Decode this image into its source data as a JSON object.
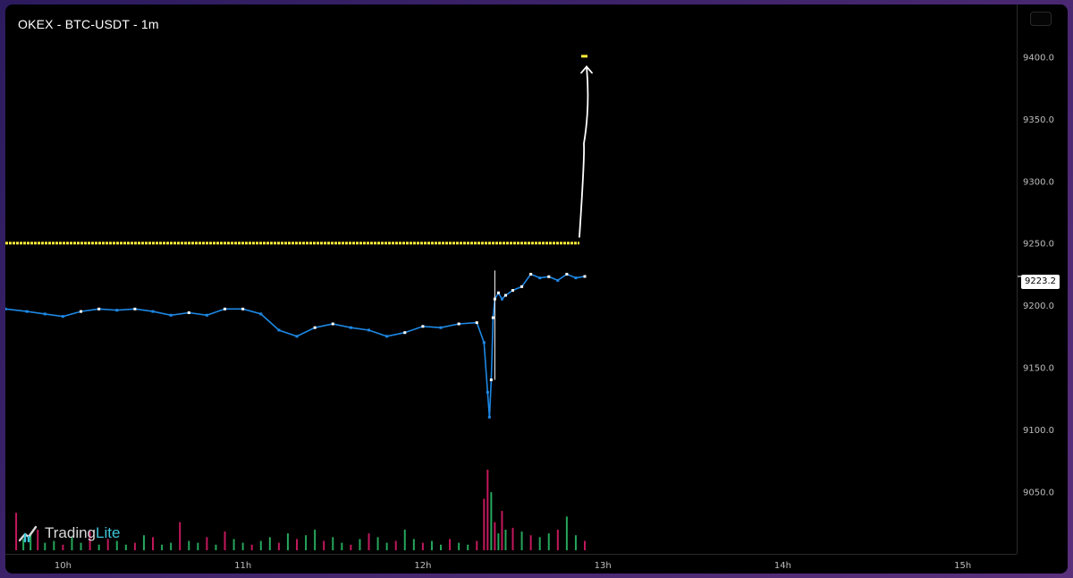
{
  "header": {
    "title": "OKEX - BTC-USDT - 1m"
  },
  "brand": {
    "name_main": "Trading",
    "name_accent": "Lite"
  },
  "current_price_label": "9223.2",
  "colors": {
    "background": "#000000",
    "price_line": "#1e88e5",
    "level_line": "#ffeb3b",
    "volume_up": "#26a65b",
    "volume_down": "#c2185b",
    "annotation_arrow": "#ffffff",
    "brand_accent": "#3fc6d9"
  },
  "chart_data": {
    "type": "line",
    "title": "OKEX - BTC-USDT - 1m",
    "x_unit": "hour",
    "x_range": [
      9.68,
      15.3
    ],
    "xticks": [
      {
        "value": 10,
        "label": "10h"
      },
      {
        "value": 11,
        "label": "11h"
      },
      {
        "value": 12,
        "label": "12h"
      },
      {
        "value": 13,
        "label": "13h"
      },
      {
        "value": 14,
        "label": "14h"
      },
      {
        "value": 15,
        "label": "15h"
      }
    ],
    "ylim": [
      9000,
      9442
    ],
    "yticks": [
      9050,
      9100,
      9150,
      9200,
      9250,
      9300,
      9350,
      9400
    ],
    "ytick_labels": [
      "9050.0",
      "9100.0",
      "9150.0",
      "9200.0",
      "9250.0",
      "9300.0",
      "9350.0",
      "9400.0"
    ],
    "grid": false,
    "series": [
      {
        "x": [
          9.68,
          9.8,
          9.9,
          10.0,
          10.1,
          10.2,
          10.3,
          10.4,
          10.5,
          10.6,
          10.7,
          10.8,
          10.9,
          11.0,
          11.1,
          11.2,
          11.3,
          11.4,
          11.5,
          11.6,
          11.7,
          11.8,
          11.9,
          12.0,
          12.1,
          12.2,
          12.3,
          12.34,
          12.36,
          12.37,
          12.38,
          12.39,
          12.4,
          12.42,
          12.44,
          12.46,
          12.5,
          12.55,
          12.6,
          12.65,
          12.7,
          12.75,
          12.8,
          12.85,
          12.9
        ],
        "y": [
          9197,
          9195,
          9193,
          9191,
          9195,
          9197,
          9196,
          9197,
          9195,
          9192,
          9194,
          9192,
          9197,
          9197,
          9193,
          9180,
          9175,
          9182,
          9185,
          9182,
          9180,
          9175,
          9178,
          9183,
          9182,
          9185,
          9186,
          9170,
          9130,
          9110,
          9140,
          9190,
          9205,
          9210,
          9205,
          9208,
          9212,
          9215,
          9225,
          9222,
          9223,
          9220,
          9225,
          9222,
          9223.2
        ]
      }
    ],
    "horizontal_levels": [
      9250
    ],
    "target_level": 9400,
    "volume": {
      "x": [
        9.74,
        9.78,
        9.82,
        9.86,
        9.9,
        9.95,
        10.0,
        10.05,
        10.1,
        10.15,
        10.2,
        10.25,
        10.3,
        10.35,
        10.4,
        10.45,
        10.5,
        10.55,
        10.6,
        10.65,
        10.7,
        10.75,
        10.8,
        10.85,
        10.9,
        10.95,
        11.0,
        11.05,
        11.1,
        11.15,
        11.2,
        11.25,
        11.3,
        11.35,
        11.4,
        11.45,
        11.5,
        11.55,
        11.6,
        11.65,
        11.7,
        11.75,
        11.8,
        11.85,
        11.9,
        11.95,
        12.0,
        12.05,
        12.1,
        12.15,
        12.2,
        12.25,
        12.3,
        12.34,
        12.36,
        12.38,
        12.4,
        12.42,
        12.44,
        12.46,
        12.5,
        12.55,
        12.6,
        12.65,
        12.7,
        12.75,
        12.8,
        12.85,
        12.9
      ],
      "values": [
        40,
        12,
        18,
        22,
        8,
        10,
        6,
        14,
        8,
        20,
        6,
        12,
        10,
        6,
        8,
        16,
        14,
        6,
        8,
        30,
        10,
        8,
        14,
        6,
        20,
        12,
        8,
        6,
        10,
        14,
        8,
        18,
        12,
        16,
        22,
        10,
        14,
        8,
        6,
        12,
        18,
        14,
        8,
        10,
        22,
        12,
        8,
        10,
        6,
        12,
        8,
        6,
        10,
        55,
        86,
        62,
        30,
        18,
        42,
        22,
        24,
        20,
        16,
        14,
        18,
        22,
        36,
        16,
        10
      ],
      "up": [
        false,
        true,
        true,
        false,
        true,
        true,
        false,
        true,
        true,
        false,
        true,
        false,
        true,
        true,
        false,
        true,
        false,
        true,
        true,
        false,
        true,
        true,
        false,
        true,
        false,
        true,
        true,
        false,
        true,
        true,
        false,
        true,
        false,
        true,
        true,
        false,
        true,
        true,
        false,
        true,
        false,
        true,
        true,
        false,
        true,
        true,
        false,
        true,
        true,
        false,
        true,
        true,
        false,
        false,
        false,
        true,
        false,
        true,
        false,
        true,
        false,
        true,
        false,
        true,
        true,
        false,
        true,
        true,
        false
      ]
    }
  }
}
